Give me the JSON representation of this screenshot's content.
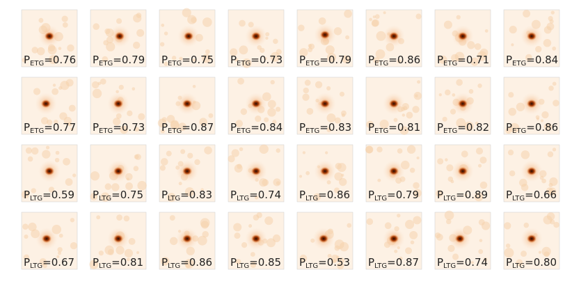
{
  "label_symbol": "P",
  "label_relation": "=",
  "panels": [
    {
      "class": "ETG",
      "probability": "0.76"
    },
    {
      "class": "ETG",
      "probability": "0.79"
    },
    {
      "class": "ETG",
      "probability": "0.75"
    },
    {
      "class": "ETG",
      "probability": "0.73"
    },
    {
      "class": "ETG",
      "probability": "0.79"
    },
    {
      "class": "ETG",
      "probability": "0.86"
    },
    {
      "class": "ETG",
      "probability": "0.71"
    },
    {
      "class": "ETG",
      "probability": "0.84"
    },
    {
      "class": "ETG",
      "probability": "0.77"
    },
    {
      "class": "ETG",
      "probability": "0.73"
    },
    {
      "class": "ETG",
      "probability": "0.87"
    },
    {
      "class": "ETG",
      "probability": "0.84"
    },
    {
      "class": "ETG",
      "probability": "0.83"
    },
    {
      "class": "ETG",
      "probability": "0.81"
    },
    {
      "class": "ETG",
      "probability": "0.82"
    },
    {
      "class": "ETG",
      "probability": "0.86"
    },
    {
      "class": "LTG",
      "probability": "0.59"
    },
    {
      "class": "LTG",
      "probability": "0.75"
    },
    {
      "class": "LTG",
      "probability": "0.83"
    },
    {
      "class": "LTG",
      "probability": "0.74"
    },
    {
      "class": "LTG",
      "probability": "0.86"
    },
    {
      "class": "LTG",
      "probability": "0.79"
    },
    {
      "class": "LTG",
      "probability": "0.89"
    },
    {
      "class": "LTG",
      "probability": "0.66"
    },
    {
      "class": "LTG",
      "probability": "0.67"
    },
    {
      "class": "LTG",
      "probability": "0.81"
    },
    {
      "class": "LTG",
      "probability": "0.86"
    },
    {
      "class": "LTG",
      "probability": "0.85"
    },
    {
      "class": "LTG",
      "probability": "0.53"
    },
    {
      "class": "LTG",
      "probability": "0.87"
    },
    {
      "class": "LTG",
      "probability": "0.74"
    },
    {
      "class": "LTG",
      "probability": "0.80"
    }
  ]
}
